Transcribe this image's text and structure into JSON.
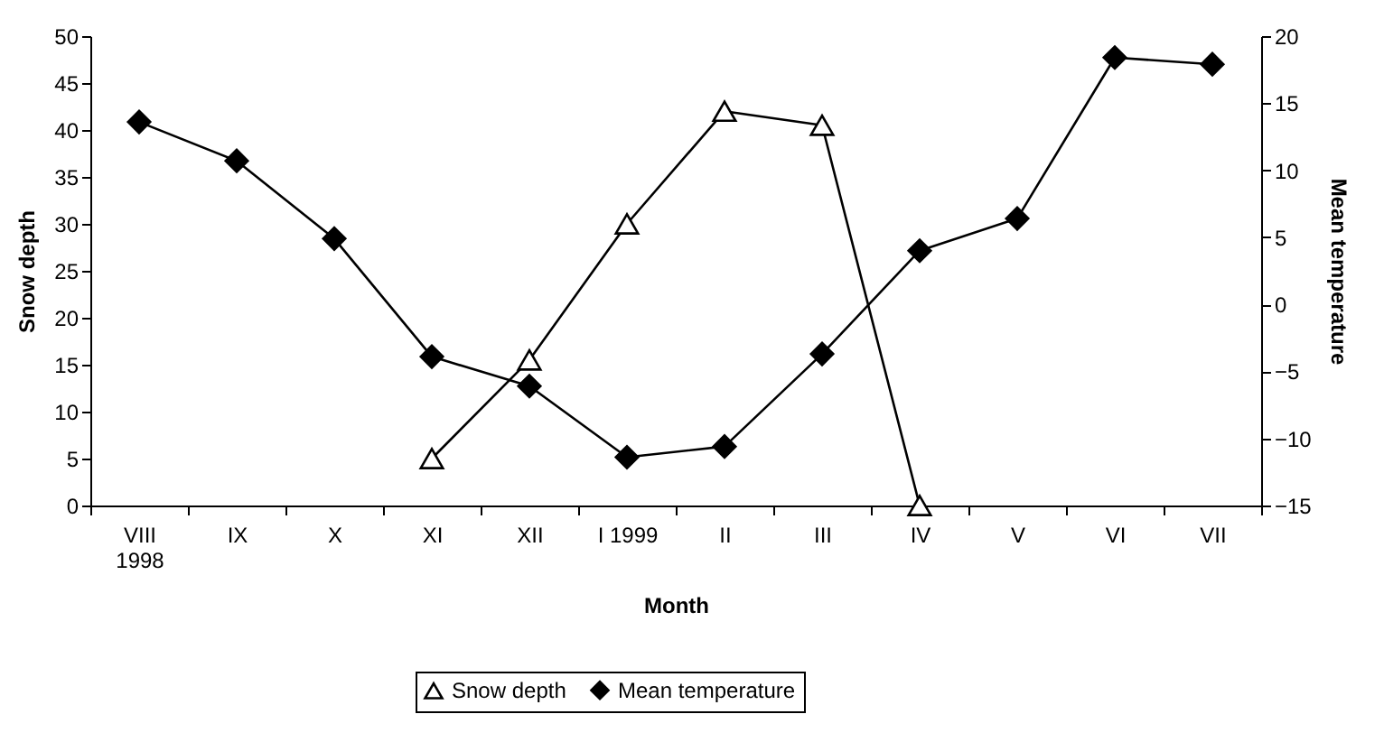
{
  "chart_data": {
    "type": "line",
    "xlabel": "Month",
    "ylabel": "Snow depth",
    "y2label": "Mean temperature",
    "categories": [
      "VIII\n1998",
      "IX",
      "X",
      "XI",
      "XII",
      "I 1999",
      "II",
      "III",
      "IV",
      "V",
      "VI",
      "VII"
    ],
    "series": [
      {
        "name": "Snow depth",
        "color": "#000000",
        "marker": "triangle",
        "values": [
          null,
          null,
          null,
          5,
          15.5,
          30,
          42,
          40.5,
          0,
          null,
          null,
          null
        ]
      },
      {
        "name": "Mean temperature",
        "color": "#000000",
        "marker": "diamond",
        "axis": "y2",
        "values": [
          13.6,
          10.7,
          4.9,
          -3.9,
          -6.1,
          -11.4,
          -10.6,
          -3.7,
          4.0,
          6.4,
          18.4,
          17.9
        ]
      }
    ],
    "ylim": [
      0,
      50
    ],
    "yticks": [
      0,
      5,
      10,
      15,
      20,
      25,
      30,
      35,
      40,
      45,
      50
    ],
    "y2lim": [
      -15,
      20
    ],
    "y2ticks": [
      -15,
      -10,
      -5,
      0,
      5,
      10,
      15,
      20
    ],
    "grid": false,
    "legend": "bottom"
  }
}
